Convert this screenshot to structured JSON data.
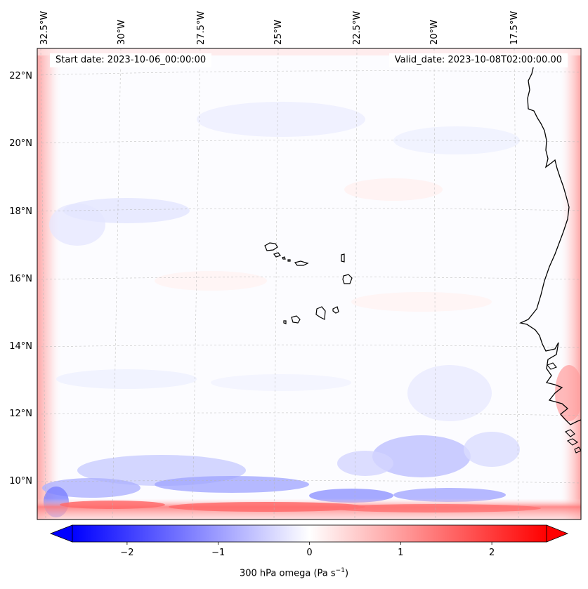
{
  "map": {
    "start_date": "Start date: 2023-10-06_00:00:00",
    "valid_date": "Valid_date: 2023-10-08T02:00:00.00",
    "lon_labels": [
      "32.5°W",
      "30°W",
      "27.5°W",
      "25°W",
      "22.5°W",
      "20°W",
      "17.5°W"
    ],
    "lat_labels": [
      "22°N",
      "20°N",
      "18°N",
      "16°N",
      "14°N",
      "12°N",
      "10°N"
    ],
    "field": "300 hPa omega",
    "colormap": "bwr",
    "colors": {
      "negative": "#0000ff",
      "zero": "#ffffff",
      "positive": "#ff0000"
    }
  },
  "colorbar": {
    "label_main": "300 hPa omega (Pa s",
    "label_exp": "−1",
    "label_tail": ")",
    "range": [
      -2.6,
      2.6
    ],
    "ticks": [
      {
        "value": -2,
        "label": "−2"
      },
      {
        "value": -1,
        "label": "−1"
      },
      {
        "value": 0,
        "label": "0"
      },
      {
        "value": 1,
        "label": "1"
      },
      {
        "value": 2,
        "label": "2"
      }
    ],
    "extend": "both"
  }
}
